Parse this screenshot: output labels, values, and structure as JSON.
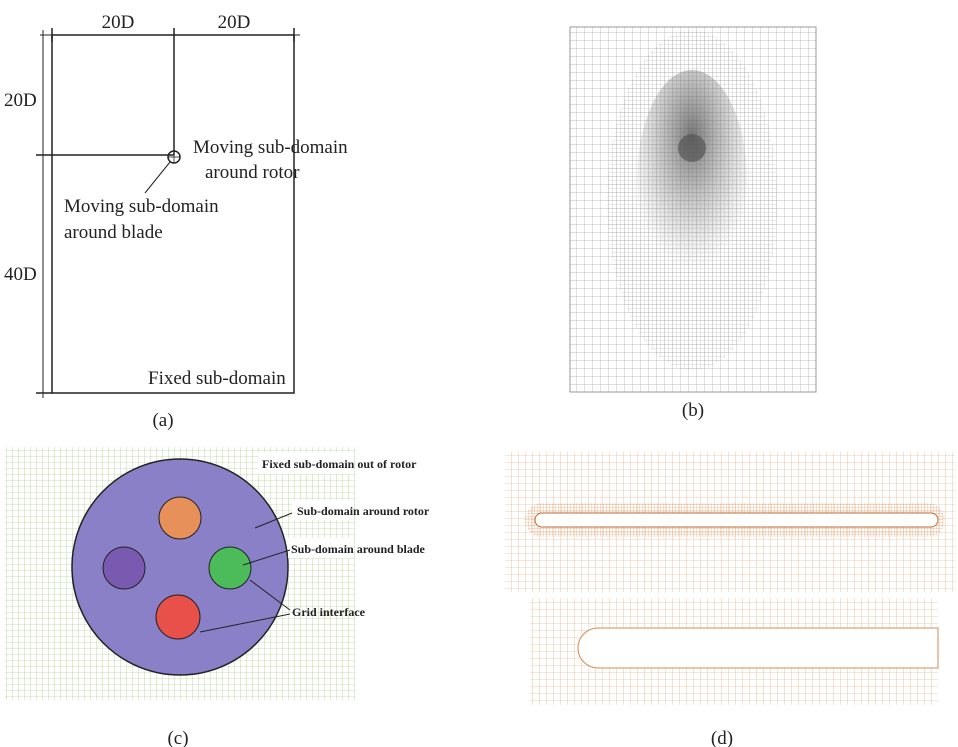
{
  "panels": {
    "a": {
      "caption": "(a)",
      "dim_top": [
        "20D",
        "20D"
      ],
      "dim_left": [
        "20D",
        "40D"
      ],
      "rotor_label": [
        "Moving sub-domain",
        "around rotor"
      ],
      "blade_label": [
        "Moving sub-domain",
        "around blade"
      ],
      "fixed_label": "Fixed sub-domain"
    },
    "b": {
      "caption": "(b)"
    },
    "c": {
      "caption": "(c)",
      "labels": [
        "Fixed sub-domain out of rotor",
        "Sub-domain around rotor",
        "Sub-domain around blade",
        "Grid interface"
      ]
    },
    "d": {
      "caption": "(d)"
    }
  }
}
